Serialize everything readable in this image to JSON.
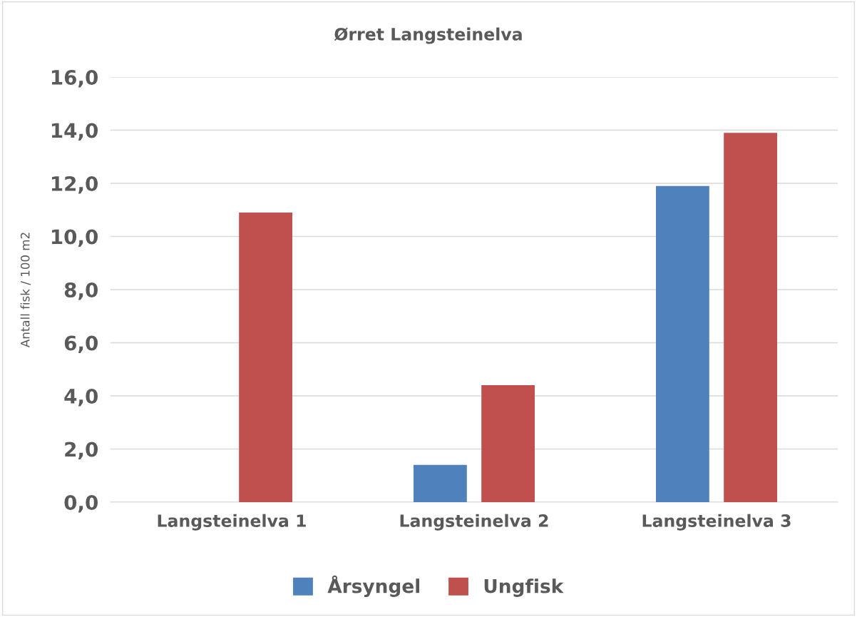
{
  "chart_data": {
    "type": "bar",
    "title": "Ørret Langsteinelva",
    "ylabel": "Antall fisk / 100 m2",
    "categories": [
      "Langsteinelva 1",
      "Langsteinelva 2",
      "Langsteinelva 3"
    ],
    "series": [
      {
        "name": "Årsyngel",
        "color": "#4f81bd",
        "values": [
          0,
          1.4,
          11.9
        ]
      },
      {
        "name": "Ungfisk",
        "color": "#c0504d",
        "values": [
          10.9,
          4.4,
          13.9
        ]
      }
    ],
    "ylim": [
      0,
      16
    ],
    "yticks": [
      {
        "value": 0,
        "label": "0,0"
      },
      {
        "value": 2,
        "label": "2,0"
      },
      {
        "value": 4,
        "label": "4,0"
      },
      {
        "value": 6,
        "label": "6,0"
      },
      {
        "value": 8,
        "label": "8,0"
      },
      {
        "value": 10,
        "label": "10,0"
      },
      {
        "value": 12,
        "label": "12,0"
      },
      {
        "value": 14,
        "label": "14,0"
      },
      {
        "value": 16,
        "label": "16,0"
      }
    ],
    "grid": "y",
    "legend": "bottom"
  }
}
